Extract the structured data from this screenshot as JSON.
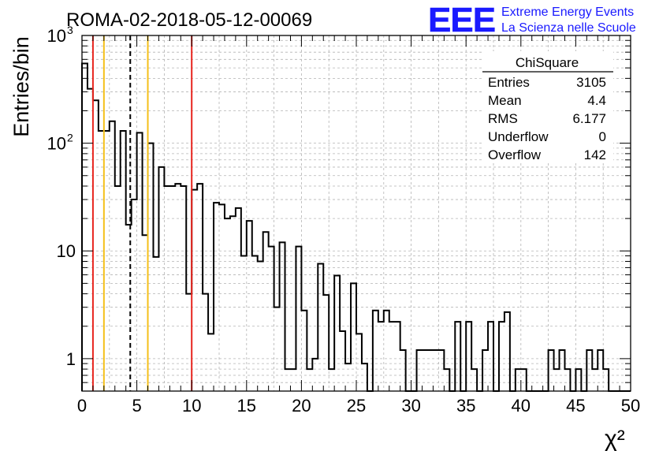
{
  "header": {
    "run_title": "ROMA-02-2018-05-12-00069",
    "logo_text": "EEE",
    "logo_line1": "Extreme Energy Events",
    "logo_line2": "La Scienza nelle Scuole",
    "logo_color": "#1a1aff"
  },
  "stats_box": {
    "title": "ChiSquare",
    "rows": [
      {
        "label": "Entries",
        "value": "3105"
      },
      {
        "label": "Mean",
        "value": "4.4"
      },
      {
        "label": "RMS",
        "value": "6.177"
      },
      {
        "label": "Underflow",
        "value": "0"
      },
      {
        "label": "Overflow",
        "value": "142"
      }
    ]
  },
  "chart_data": {
    "type": "histogram",
    "title": "ROMA-02-2018-05-12-00069",
    "xlabel": "χ²",
    "ylabel": "Entries/bin",
    "xlim": [
      0,
      50
    ],
    "ylim": [
      0.5,
      1000
    ],
    "y_scale": "log",
    "grid": true,
    "bin_width": 0.5,
    "x_tick_labels": [
      "0",
      "5",
      "10",
      "15",
      "20",
      "25",
      "30",
      "35",
      "40",
      "45",
      "50"
    ],
    "y_tick_labels": [
      {
        "value": 1,
        "label": "1"
      },
      {
        "value": 10,
        "label": "10"
      },
      {
        "value": 100,
        "label": "10",
        "exp": "2"
      },
      {
        "value": 1000,
        "label": "10",
        "exp": "3"
      }
    ],
    "values": [
      550,
      320,
      250,
      130,
      130,
      160,
      40,
      130,
      17.5,
      30,
      125,
      14,
      100,
      8.8,
      60,
      40,
      40,
      42,
      40,
      4,
      37,
      42,
      4,
      1.7,
      28,
      27,
      20,
      21,
      25,
      9,
      19,
      9,
      8,
      15,
      11,
      3,
      12,
      0.8,
      0.8,
      11,
      2.8,
      0.8,
      1,
      7.6,
      3.9,
      0.8,
      5.9,
      1.8,
      0.9,
      5,
      1.7,
      0.9,
      0,
      2.8,
      2.2,
      2.8,
      2.2,
      2.2,
      1.2,
      0,
      0,
      1.2,
      1.2,
      1.2,
      1.2,
      1.2,
      0.8,
      0,
      2.2,
      0,
      2.2,
      0.8,
      0,
      1.2,
      2.2,
      0,
      2.2,
      2.7,
      0,
      0.8,
      0.8,
      0,
      0,
      0,
      0,
      1.2,
      0.8,
      1.2,
      0.8,
      0,
      0.8,
      0,
      1.2,
      0.8,
      1.2,
      0.8,
      0,
      0,
      0,
      0
    ],
    "vertical_lines": [
      {
        "x": 1,
        "color": "#e8251e",
        "style": "solid"
      },
      {
        "x": 2,
        "color": "#f4c01a",
        "style": "solid"
      },
      {
        "x": 4.4,
        "color": "#000000",
        "style": "dashed"
      },
      {
        "x": 6,
        "color": "#f4c01a",
        "style": "solid"
      },
      {
        "x": 10,
        "color": "#e8251e",
        "style": "solid"
      }
    ]
  }
}
